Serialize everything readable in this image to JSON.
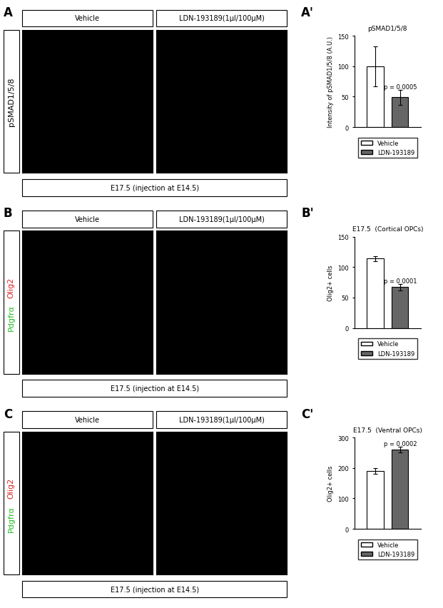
{
  "image_panels": [
    {
      "panel_label": "A",
      "columns": [
        "Vehicle",
        "LDN-193189(1µl/100µM)"
      ],
      "stains": [
        {
          "text": "pSMAD1/5/8",
          "color": "#000000"
        }
      ],
      "caption": "E17.5 (injection at E14.5)"
    },
    {
      "panel_label": "B",
      "columns": [
        "Vehicle",
        "LDN-193189(1µl/100µM)"
      ],
      "stains": [
        {
          "text": "Pdgfrα",
          "color": "#22bb22"
        },
        {
          "text": "Olig2",
          "color": "#dd2222"
        }
      ],
      "caption": "E17.5 (injection at E14.5)"
    },
    {
      "panel_label": "C",
      "columns": [
        "Vehicle",
        "LDN-193189(1µl/100µM)"
      ],
      "stains": [
        {
          "text": "Pdgfrα",
          "color": "#22bb22"
        },
        {
          "text": "Olig2",
          "color": "#dd2222"
        }
      ],
      "caption": "E17.5 (injection at E14.5)"
    }
  ],
  "chart_data": [
    {
      "type": "bar",
      "panel_label": "A'",
      "title": "pSMAD1/5/8",
      "y_label": "Intensity of pSMAD1/5/8 (A.U.)",
      "categories": [
        null
      ],
      "series": [
        {
          "name": "Vehicle",
          "color": "#ffffff",
          "values": [
            100
          ],
          "errors": [
            33
          ]
        },
        {
          "name": "LDN-193189",
          "color": "#666666",
          "values": [
            49
          ],
          "errors": [
            12
          ]
        }
      ],
      "annotation": "p = 0.0005",
      "ylim": [
        0,
        150
      ],
      "yticks": [
        0,
        50,
        100,
        150
      ],
      "legend": "below"
    },
    {
      "type": "bar",
      "panel_label": "B'",
      "title": "E17.5  (Cortical OPCs)",
      "y_label": "Olig2+ cells",
      "categories": [
        null
      ],
      "series": [
        {
          "name": "Vehicle",
          "color": "#ffffff",
          "values": [
            114
          ],
          "errors": [
            4
          ]
        },
        {
          "name": "LDN-193189",
          "color": "#666666",
          "values": [
            67
          ],
          "errors": [
            5
          ]
        }
      ],
      "annotation": "p = 0.0001",
      "ylim": [
        0,
        150
      ],
      "yticks": [
        0,
        50,
        100,
        150
      ],
      "legend": "below"
    },
    {
      "type": "bar",
      "panel_label": "C'",
      "title": "E17.5  (Ventral OPCs)",
      "y_label": "Olig2+ cells",
      "categories": [
        null
      ],
      "series": [
        {
          "name": "Vehicle",
          "color": "#ffffff",
          "values": [
            190
          ],
          "errors": [
            10
          ]
        },
        {
          "name": "LDN-193189",
          "color": "#666666",
          "values": [
            260
          ],
          "errors": [
            9
          ]
        }
      ],
      "annotation": "p = 0.0002",
      "ylim": [
        0,
        300
      ],
      "yticks": [
        0,
        100,
        200,
        300
      ],
      "legend": "below"
    }
  ]
}
